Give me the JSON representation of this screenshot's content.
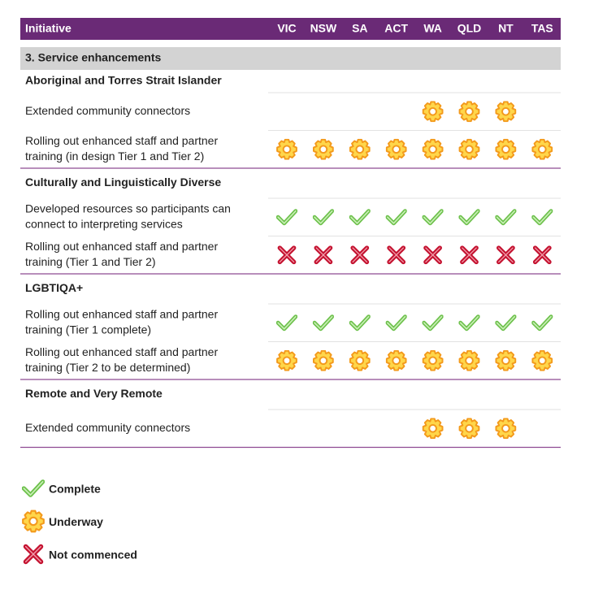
{
  "header": {
    "columns": [
      "Initiative",
      "VIC",
      "NSW",
      "SA",
      "ACT",
      "WA",
      "QLD",
      "NT",
      "TAS"
    ]
  },
  "section": "3. Service enhancements",
  "groups": [
    {
      "title": "Aboriginal and Torres Strait Islander",
      "rows": [
        {
          "lines": [
            "Extended community connectors"
          ],
          "cells": [
            null,
            null,
            null,
            null,
            "Underway",
            "Underway",
            "Underway",
            null
          ]
        },
        {
          "lines": [
            "Rolling out enhanced staff and partner",
            "training (in design Tier 1 and Tier 2)"
          ],
          "cells": [
            "Underway",
            "Underway",
            "Underway",
            "Underway",
            "Underway",
            "Underway",
            "Underway",
            "Underway"
          ]
        }
      ]
    },
    {
      "title": "Culturally and Linguistically Diverse",
      "rows": [
        {
          "lines": [
            "Developed resources so participants can",
            "connect to interpreting services"
          ],
          "cells": [
            "Complete",
            "Complete",
            "Complete",
            "Complete",
            "Complete",
            "Complete",
            "Complete",
            "Complete"
          ]
        },
        {
          "lines": [
            "Rolling out enhanced staff and partner",
            "training (Tier 1 and Tier 2)"
          ],
          "cells": [
            "Not commenced",
            "Not commenced",
            "Not commenced",
            "Not commenced",
            "Not commenced",
            "Not commenced",
            "Not commenced",
            "Not commenced"
          ]
        }
      ]
    },
    {
      "title": "LGBTIQA+",
      "rows": [
        {
          "lines": [
            "Rolling out enhanced staff and partner",
            "training (Tier 1 complete)"
          ],
          "cells": [
            "Complete",
            "Complete",
            "Complete",
            "Complete",
            "Complete",
            "Complete",
            "Complete",
            "Complete"
          ]
        },
        {
          "lines": [
            "Rolling out enhanced staff and partner",
            "training (Tier 2 to be determined)"
          ],
          "cells": [
            "Underway",
            "Underway",
            "Underway",
            "Underway",
            "Underway",
            "Underway",
            "Underway",
            "Underway"
          ]
        }
      ]
    },
    {
      "title": "Remote and Very Remote",
      "rows": [
        {
          "lines": [
            "Extended community connectors"
          ],
          "cells": [
            null,
            null,
            null,
            null,
            "Underway",
            "Underway",
            "Underway",
            null
          ]
        }
      ]
    }
  ],
  "legend": [
    {
      "label": "Complete"
    },
    {
      "label": "Underway"
    },
    {
      "label": "Not commenced"
    }
  ]
}
